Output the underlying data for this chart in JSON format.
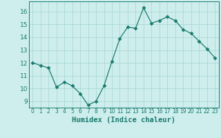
{
  "x": [
    0,
    1,
    2,
    3,
    4,
    5,
    6,
    7,
    8,
    9,
    10,
    11,
    12,
    13,
    14,
    15,
    16,
    17,
    18,
    19,
    20,
    21,
    22,
    23
  ],
  "y": [
    12.0,
    11.8,
    11.6,
    10.1,
    10.5,
    10.2,
    9.6,
    8.7,
    9.0,
    10.2,
    12.1,
    13.9,
    14.8,
    14.7,
    16.3,
    15.1,
    15.3,
    15.6,
    15.3,
    14.6,
    14.3,
    13.7,
    13.1,
    12.4
  ],
  "line_color": "#1a7a6e",
  "marker": "D",
  "marker_size": 2.5,
  "bg_color": "#ceeeed",
  "grid_color": "#aad8d4",
  "tick_color": "#1a7a6e",
  "xlabel": "Humidex (Indice chaleur)",
  "xlabel_color": "#1a7a6e",
  "xlabel_fontsize": 7.5,
  "ylabel_ticks": [
    9,
    10,
    11,
    12,
    13,
    14,
    15,
    16
  ],
  "xlim": [
    -0.5,
    23.5
  ],
  "ylim": [
    8.5,
    16.8
  ],
  "xtick_fontsize": 5.5,
  "ytick_fontsize": 6.5,
  "lw": 0.9
}
